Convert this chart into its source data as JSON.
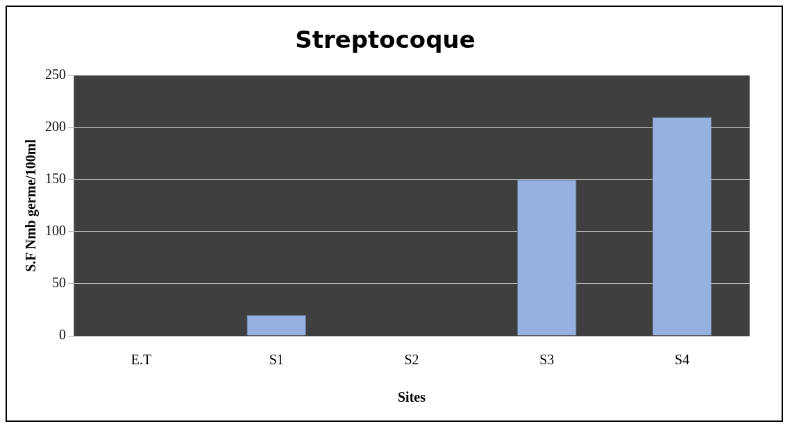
{
  "chart_data": {
    "type": "bar",
    "title": "Streptocoque",
    "xlabel": "Sites",
    "ylabel": "S.F Nmb germe/100ml",
    "categories": [
      "E.T",
      "S1",
      "S2",
      "S3",
      "S4"
    ],
    "values": [
      0,
      20,
      0,
      150,
      210
    ],
    "color": "#95b1df",
    "ylim": [
      0,
      250
    ],
    "yticks": [
      0,
      50,
      100,
      150,
      200,
      250
    ],
    "grid": "y",
    "legend": false
  }
}
